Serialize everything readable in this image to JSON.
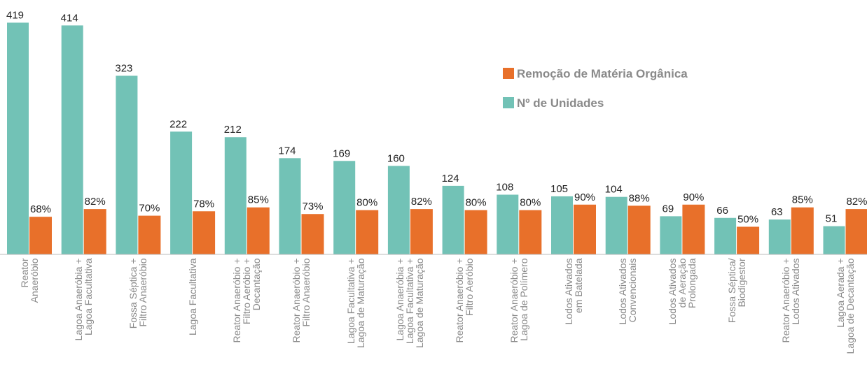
{
  "chart_data": {
    "type": "bar",
    "categories": [
      "Reator\nAnaeróbio",
      "Lagoa Anaeróbia +\nLagoa Facultativa",
      "Fossa Séptica +\nFiltro Anaeróbio",
      "Lagoa Facultativa",
      "Reator Anaeróbio +\nFiltro Aeróbio +\nDecantação",
      "Reator Anaeróbio +\nFiltro Anaeróbio",
      "Lagoa Facultativa +\nLagoa de Maturação",
      "Lagoa Anaeróbia +\nLagoa Facultativa +\nLagoa de Maturação",
      "Reator Anaeróbio +\nFiltro Aeróbio",
      "Reator Anaeróbio +\nLagoa de Polímero",
      "Lodos Ativados\nem Batelada",
      "Lodos Ativados\nConvencionais",
      "Lodos Ativados\nde Aeração\nProlongada",
      "Fossa Séptica/\nBiodigestor",
      "Reator Anaeróbio +\nLodos Ativados",
      "Lagoa Aerada +\nLagoa de Decantação"
    ],
    "series": [
      {
        "name": "Nº de Unidades",
        "color": "#72c2b6",
        "values": [
          419,
          414,
          323,
          222,
          212,
          174,
          169,
          160,
          124,
          108,
          105,
          104,
          69,
          66,
          63,
          51
        ]
      },
      {
        "name": "Remoção de Matéria Orgânica",
        "color": "#e8702a",
        "values": [
          68,
          82,
          70,
          78,
          85,
          73,
          80,
          82,
          80,
          80,
          90,
          88,
          90,
          50,
          85,
          82
        ],
        "value_labels": [
          "68%",
          "82%",
          "70%",
          "78%",
          "85%",
          "73%",
          "80%",
          "82%",
          "80%",
          "80%",
          "90%",
          "88%",
          "90%",
          "50%",
          "85%",
          "82%"
        ]
      }
    ],
    "ylim": [
      0,
      460
    ]
  }
}
